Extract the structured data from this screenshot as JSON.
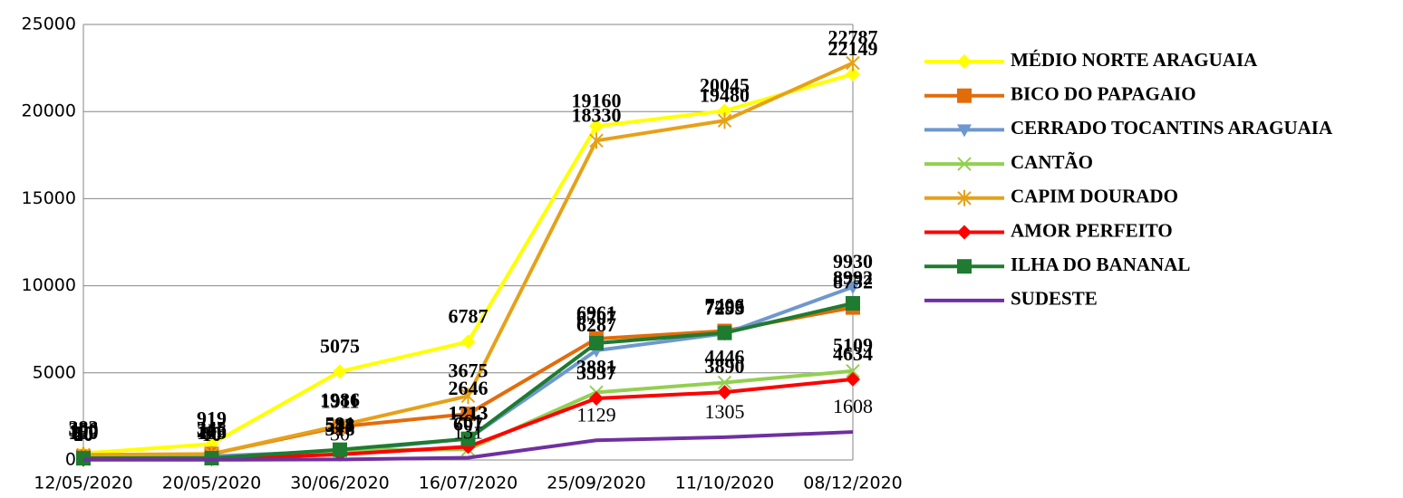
{
  "chart_data": {
    "type": "line",
    "categories": [
      "12/05/2020",
      "20/05/2020",
      "30/06/2020",
      "16/07/2020",
      "25/09/2020",
      "11/10/2020",
      "08/12/2020"
    ],
    "ylim": [
      0,
      25000
    ],
    "yticks": [
      0,
      5000,
      10000,
      15000,
      20000,
      25000
    ],
    "grid": true,
    "legend": "right",
    "series": [
      {
        "name": "MÉDIO NORTE ARAGUAIA",
        "color": "#ffff00",
        "marker": "diamond",
        "values": [
          383,
          919,
          5075,
          6787,
          19160,
          20045,
          22149
        ]
      },
      {
        "name": "BICO DO PAPAGAIO",
        "color": "#e36c0a",
        "marker": "square",
        "values": [
          190,
          345,
          1911,
          2646,
          6961,
          7406,
          8752
        ]
      },
      {
        "name": "CERRADO TOCANTINS ARAGUAIA",
        "color": "#6f97cf",
        "marker": "triangle",
        "values": [
          80,
          216,
          513,
          1213,
          6287,
          7253,
          9930
        ]
      },
      {
        "name": "CANTÃO",
        "color": "#92d050",
        "marker": "x",
        "values": [
          50,
          60,
          548,
          607,
          3881,
          4446,
          5109
        ]
      },
      {
        "name": "CAPIM DOURADO",
        "color": "#e6a118",
        "marker": "star",
        "values": [
          300,
          345,
          1986,
          3675,
          18330,
          19480,
          22787
        ]
      },
      {
        "name": "AMOR PERFEITO",
        "color": "#ff0000",
        "marker": "diamond",
        "values": [
          20,
          60,
          318,
          761,
          3537,
          3890,
          4634
        ]
      },
      {
        "name": "ILHA DO BANANAL",
        "color": "#1e7b30",
        "marker": "square",
        "values": [
          100,
          105,
          591,
          1213,
          6707,
          7295,
          8992
        ]
      },
      {
        "name": "SUDESTE",
        "color": "#7030a0",
        "marker": "none",
        "values": [
          10,
          10,
          30,
          131,
          1129,
          1305,
          1608
        ]
      }
    ]
  }
}
